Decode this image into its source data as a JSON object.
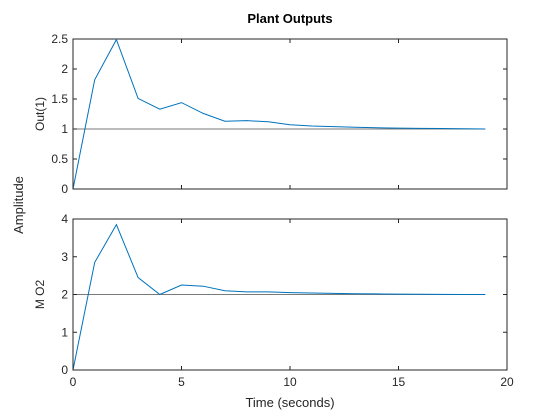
{
  "chart_data": {
    "type": "line",
    "title": "Plant Outputs",
    "xlabel": "Time (seconds)",
    "ylabel": "Amplitude",
    "grid": false,
    "series_color": "#0072bd",
    "reference_color": "#7a7a7a",
    "xlim": [
      0,
      20
    ],
    "xticks": [
      0,
      5,
      10,
      15,
      20
    ],
    "subplots": [
      {
        "ylabel": "Out(1)",
        "ylim": [
          0,
          2.5
        ],
        "yticks": [
          0,
          0.5,
          1,
          1.5,
          2,
          2.5
        ],
        "ytick_labels": [
          "0",
          "0.5",
          "1",
          "1.5",
          "2",
          "2.5"
        ],
        "reference": 1,
        "x": [
          0,
          1,
          2,
          3,
          4,
          5,
          6,
          7,
          8,
          9,
          10,
          11,
          12,
          13,
          14,
          15,
          16,
          17,
          18,
          19
        ],
        "y": [
          0,
          1.82,
          2.49,
          1.51,
          1.33,
          1.44,
          1.26,
          1.13,
          1.14,
          1.12,
          1.07,
          1.05,
          1.04,
          1.03,
          1.02,
          1.015,
          1.01,
          1.008,
          1.005,
          1.0
        ]
      },
      {
        "ylabel": "M O2",
        "ylim": [
          0,
          4
        ],
        "yticks": [
          0,
          1,
          2,
          3,
          4
        ],
        "ytick_labels": [
          "0",
          "1",
          "2",
          "3",
          "4"
        ],
        "reference": 2,
        "x": [
          0,
          1,
          2,
          3,
          4,
          5,
          6,
          7,
          8,
          9,
          10,
          11,
          12,
          13,
          14,
          15,
          16,
          17,
          18,
          19
        ],
        "y": [
          0,
          2.85,
          3.85,
          2.45,
          2.0,
          2.25,
          2.22,
          2.1,
          2.07,
          2.07,
          2.05,
          2.04,
          2.03,
          2.02,
          2.015,
          2.01,
          2.005,
          2.003,
          2.0,
          2.0
        ]
      }
    ]
  }
}
